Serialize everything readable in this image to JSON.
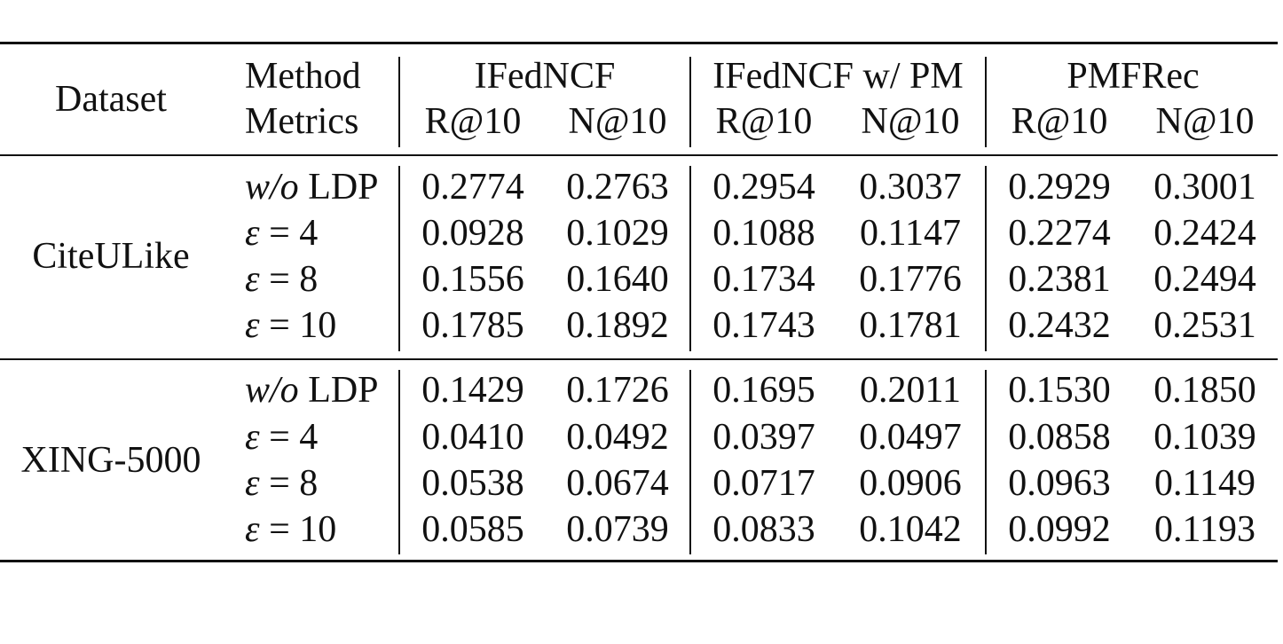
{
  "header": {
    "dataset_label": "Dataset",
    "method_label": "Method",
    "metrics_label": "Metrics",
    "methods": [
      {
        "name": "IFedNCF",
        "metrics": [
          "R@10",
          "N@10"
        ]
      },
      {
        "name": "IFedNCF w/ PM",
        "metrics": [
          "R@10",
          "N@10"
        ]
      },
      {
        "name": "PMFRec",
        "metrics": [
          "R@10",
          "N@10"
        ]
      }
    ]
  },
  "groups": [
    {
      "dataset": "CiteULike",
      "rows": [
        {
          "setting_italic": "w/o",
          "setting_rest": " LDP",
          "values": [
            "0.2774",
            "0.2763",
            "0.2954",
            "0.3037",
            "0.2929",
            "0.3001"
          ]
        },
        {
          "setting_italic": "ε",
          "setting_rest": " = 4",
          "values": [
            "0.0928",
            "0.1029",
            "0.1088",
            "0.1147",
            "0.2274",
            "0.2424"
          ]
        },
        {
          "setting_italic": "ε",
          "setting_rest": " = 8",
          "values": [
            "0.1556",
            "0.1640",
            "0.1734",
            "0.1776",
            "0.2381",
            "0.2494"
          ]
        },
        {
          "setting_italic": "ε",
          "setting_rest": " = 10",
          "values": [
            "0.1785",
            "0.1892",
            "0.1743",
            "0.1781",
            "0.2432",
            "0.2531"
          ]
        }
      ]
    },
    {
      "dataset": "XING-5000",
      "rows": [
        {
          "setting_italic": "w/o",
          "setting_rest": " LDP",
          "values": [
            "0.1429",
            "0.1726",
            "0.1695",
            "0.2011",
            "0.1530",
            "0.1850"
          ]
        },
        {
          "setting_italic": "ε",
          "setting_rest": " = 4",
          "values": [
            "0.0410",
            "0.0492",
            "0.0397",
            "0.0497",
            "0.0858",
            "0.1039"
          ]
        },
        {
          "setting_italic": "ε",
          "setting_rest": " = 8",
          "values": [
            "0.0538",
            "0.0674",
            "0.0717",
            "0.0906",
            "0.0963",
            "0.1149"
          ]
        },
        {
          "setting_italic": "ε",
          "setting_rest": " = 10",
          "values": [
            "0.0585",
            "0.0739",
            "0.0833",
            "0.1042",
            "0.0992",
            "0.1193"
          ]
        }
      ]
    }
  ]
}
